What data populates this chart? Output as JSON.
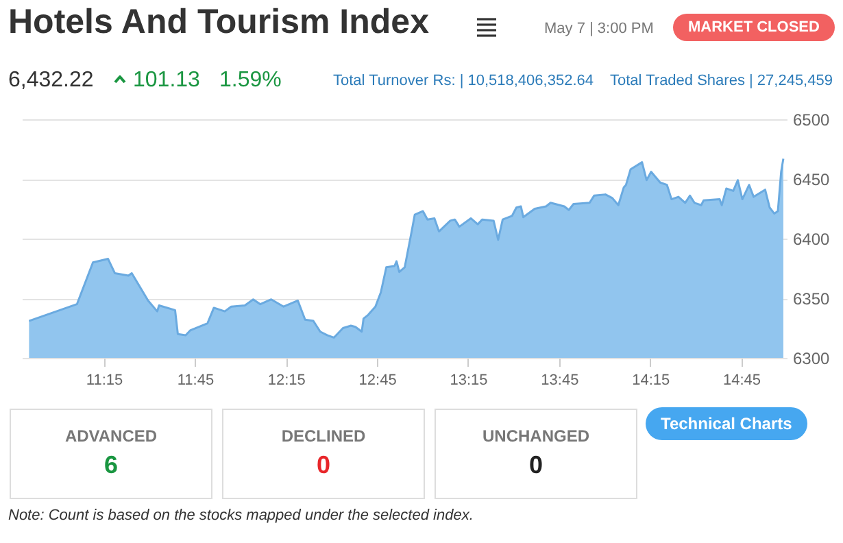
{
  "chart_data": {
    "type": "area",
    "title": "Hotels And Tourism Index",
    "annotations": [
      "May 7 | 3:00 PM",
      "MARKET CLOSED",
      "6,432.22",
      "101.13",
      "1.59%",
      "Total Turnover Rs: | 10,518,406,352.64",
      "Total Traded Shares | 27,245,459",
      "ADVANCED",
      "6",
      "DECLINED",
      "0",
      "UNCHANGED",
      "0",
      "Technical Charts",
      "Note: Count is based on the stocks mapped under the selected index."
    ],
    "x": [
      10.839,
      11.102,
      11.19,
      11.273,
      11.31,
      11.385,
      11.403,
      11.493,
      11.543,
      11.553,
      11.641,
      11.656,
      11.699,
      11.724,
      11.819,
      11.854,
      11.914,
      11.949,
      12.024,
      12.07,
      12.109,
      12.169,
      12.237,
      12.315,
      12.355,
      12.4,
      12.438,
      12.476,
      12.513,
      12.563,
      12.606,
      12.631,
      12.666,
      12.676,
      12.701,
      12.741,
      12.771,
      12.801,
      12.846,
      12.857,
      12.872,
      12.902,
      12.94,
      12.957,
      13.002,
      13.027,
      13.065,
      13.09,
      13.152,
      13.177,
      13.202,
      13.265,
      13.303,
      13.328,
      13.39,
      13.415,
      13.44,
      13.491,
      13.515,
      13.54,
      13.553,
      13.616,
      13.678,
      13.703,
      13.778,
      13.803,
      13.829,
      13.917,
      13.942,
      14.004,
      14.042,
      14.075,
      14.105,
      14.117,
      14.142,
      14.205,
      14.23,
      14.255,
      14.305,
      14.342,
      14.367,
      14.405,
      14.442,
      14.468,
      14.493,
      14.53,
      14.543,
      14.631,
      14.643,
      14.668,
      14.706,
      14.731,
      14.756,
      14.793,
      14.818,
      14.881,
      14.906,
      14.931,
      14.951,
      14.969,
      14.981
    ],
    "series": [
      {
        "color": "#91c5ee",
        "values": [
          6331,
          6345,
          6380,
          6383,
          6371,
          6369,
          6371,
          6348,
          6339,
          6344,
          6340,
          6320,
          6319,
          6323,
          6329,
          6342,
          6339,
          6343,
          6344,
          6349,
          6345,
          6349,
          6343,
          6348,
          6332,
          6331,
          6322,
          6319,
          6317,
          6325,
          6327,
          6326,
          6322,
          6333,
          6336,
          6343,
          6355,
          6376,
          6377,
          6381,
          6372,
          6376,
          6406,
          6420,
          6423,
          6416,
          6417,
          6406,
          6415,
          6416,
          6410,
          6417,
          6412,
          6416,
          6415,
          6399,
          6416,
          6419,
          6426,
          6427,
          6418,
          6425,
          6427,
          6430,
          6427,
          6424,
          6429,
          6430,
          6436,
          6437,
          6434,
          6428,
          6443,
          6445,
          6458,
          6464,
          6449,
          6456,
          6447,
          6445,
          6433,
          6435,
          6430,
          6436,
          6430,
          6428,
          6432,
          6433,
          6428,
          6442,
          6440,
          6449,
          6433,
          6445,
          6435,
          6441,
          6426,
          6421,
          6423,
          6456,
          6467
        ]
      }
    ],
    "xlim": [
      10.8,
      15.0
    ],
    "ylim": [
      6300,
      6500
    ],
    "xticks": [
      {
        "value": 11.25,
        "label": "11:15"
      },
      {
        "value": 11.75,
        "label": "11:45"
      },
      {
        "value": 12.25,
        "label": "12:15"
      },
      {
        "value": 12.75,
        "label": "12:45"
      },
      {
        "value": 13.25,
        "label": "13:15"
      },
      {
        "value": 13.75,
        "label": "13:45"
      },
      {
        "value": 14.25,
        "label": "14:15"
      },
      {
        "value": 14.75,
        "label": "14:45"
      }
    ],
    "yticks": [
      6300,
      6350,
      6400,
      6450,
      6500
    ],
    "grid": "y"
  }
}
